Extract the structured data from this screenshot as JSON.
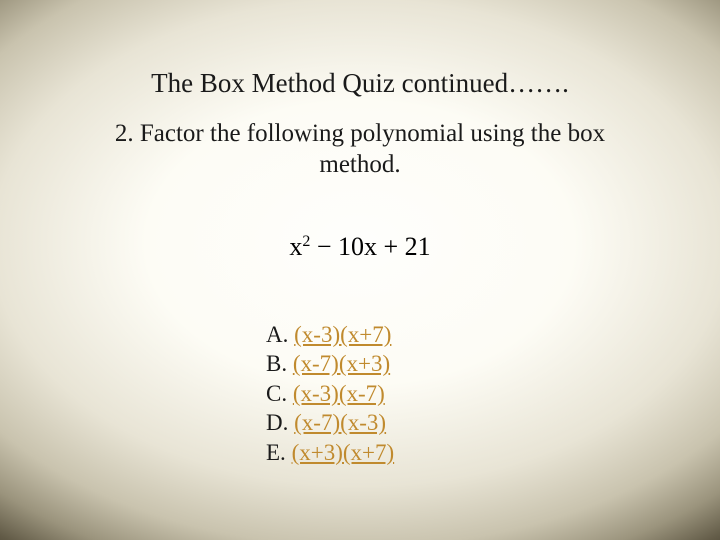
{
  "title": "The Box Method Quiz continued…….",
  "question": "2.  Factor the following polynomial using the box method.",
  "polynomial": {
    "base": "x",
    "exp": "2",
    "rest": " − 10x + 21"
  },
  "answers": [
    {
      "letter": "A.",
      "text": "(x-3)(x+7)"
    },
    {
      "letter": "B.",
      "text": "(x-7)(x+3)"
    },
    {
      "letter": "C.",
      "text": "(x-3)(x-7)"
    },
    {
      "letter": "D.",
      "text": "(x-7)(x-3)"
    },
    {
      "letter": "E.",
      "text": "(x+3)(x+7)"
    }
  ],
  "colors": {
    "link": "#c08a2e",
    "text": "#1a1a1a"
  }
}
